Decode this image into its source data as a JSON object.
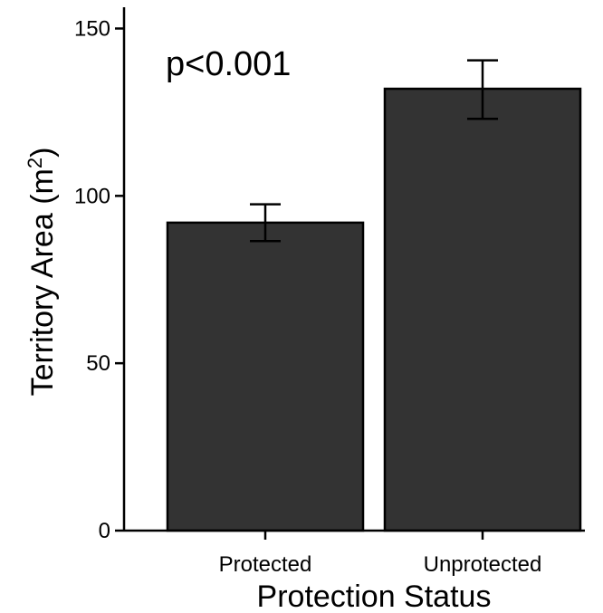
{
  "chart_data": {
    "type": "bar",
    "categories": [
      "Protected",
      "Unprotected"
    ],
    "values": [
      92,
      132
    ],
    "error_upper": [
      97.5,
      140.5
    ],
    "error_lower": [
      86.5,
      123
    ],
    "xlabel": "Protection Status",
    "ylabel": "Territory Area (m",
    "ylabel_superscript": "2",
    "ylabel_suffix": ")",
    "ylim": [
      0,
      155
    ],
    "yticks": [
      0,
      50,
      100,
      150
    ],
    "annotation": "p<0.001",
    "bar_color": "#333333",
    "grid": false
  }
}
